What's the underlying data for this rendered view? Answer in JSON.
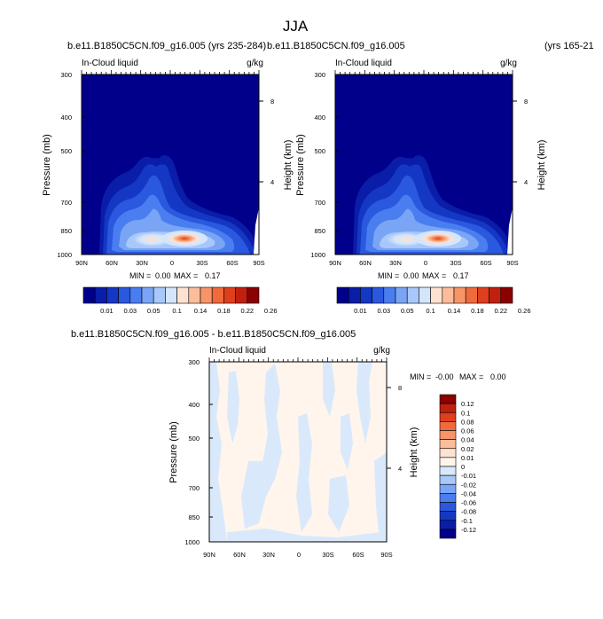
{
  "figure": {
    "title": "JJA"
  },
  "chart_data": [
    {
      "type": "heatmap",
      "panel": "left",
      "case_label": "b.e11.B1850C5CN.f09_g16.005 (yrs 235-284)",
      "variable": "In-Cloud liquid",
      "units": "g/kg",
      "ylabel": "Pressure (mb)",
      "ylabel_right": "Height (km)",
      "x_ticks": [
        "90N",
        "60N",
        "30N",
        "0",
        "30S",
        "60S",
        "90S"
      ],
      "y_ticks": [
        "300",
        "400",
        "500",
        "700",
        "850",
        "1000"
      ],
      "y_right_ticks": [
        "8",
        "4"
      ],
      "ylim": [
        1000,
        300
      ],
      "stats": {
        "min_label": "MIN =",
        "min": "0.00",
        "max_label": "MAX =",
        "max": "0.17"
      },
      "colorbar": {
        "labels": [
          "0.01",
          "0.03",
          "0.05",
          "0.1",
          "0.14",
          "0.18",
          "0.22",
          "0.26"
        ],
        "colors": [
          "#00008b",
          "#0a1da8",
          "#1438c4",
          "#2a58de",
          "#4a7ef0",
          "#7aa5f5",
          "#a8c8fa",
          "#d5e6fc",
          "#fde2d0",
          "#fbbd9c",
          "#f79468",
          "#f06a3c",
          "#de3f1c",
          "#c0200f",
          "#8b0000"
        ]
      }
    },
    {
      "type": "heatmap",
      "panel": "right",
      "case_label": "b.e11.B1850C5CN.f09_g16.005",
      "case_years": "(yrs 165-21",
      "variable": "In-Cloud liquid",
      "units": "g/kg",
      "ylabel": "Pressure (mb)",
      "ylabel_right": "Height (km)",
      "x_ticks": [
        "90N",
        "60N",
        "30N",
        "0",
        "30S",
        "60S",
        "90S"
      ],
      "y_ticks": [
        "300",
        "400",
        "500",
        "700",
        "850",
        "1000"
      ],
      "y_right_ticks": [
        "8",
        "4"
      ],
      "ylim": [
        1000,
        300
      ],
      "stats": {
        "min_label": "MIN =",
        "min": "0.00",
        "max_label": "MAX =",
        "max": "0.17"
      },
      "colorbar": {
        "labels": [
          "0.01",
          "0.03",
          "0.05",
          "0.1",
          "0.14",
          "0.18",
          "0.22",
          "0.26"
        ],
        "colors": [
          "#00008b",
          "#0a1da8",
          "#1438c4",
          "#2a58de",
          "#4a7ef0",
          "#7aa5f5",
          "#a8c8fa",
          "#d5e6fc",
          "#fde2d0",
          "#fbbd9c",
          "#f79468",
          "#f06a3c",
          "#de3f1c",
          "#c0200f",
          "#8b0000"
        ]
      }
    },
    {
      "type": "heatmap",
      "panel": "difference",
      "case_label": "b.e11.B1850C5CN.f09_g16.005 - b.e11.B1850C5CN.f09_g16.005",
      "variable": "In-Cloud liquid",
      "units": "g/kg",
      "ylabel": "Pressure (mb)",
      "ylabel_right": "Height (km)",
      "x_ticks": [
        "90N",
        "60N",
        "30N",
        "0",
        "30S",
        "60S",
        "90S"
      ],
      "y_ticks": [
        "300",
        "400",
        "500",
        "700",
        "850",
        "1000"
      ],
      "y_right_ticks": [
        "8",
        "4"
      ],
      "ylim": [
        1000,
        300
      ],
      "stats": {
        "min_label": "MIN =",
        "min": "-0.00",
        "max_label": "MAX =",
        "max": "0.00"
      },
      "colorbar": {
        "labels": [
          "0.12",
          "0.1",
          "0.08",
          "0.06",
          "0.04",
          "0.02",
          "0.01",
          "0",
          "-0.01",
          "-0.02",
          "-0.04",
          "-0.06",
          "-0.08",
          "-0.1",
          "-0.12"
        ],
        "colors": [
          "#8b0000",
          "#c0200f",
          "#de3f1c",
          "#f06a3c",
          "#f79468",
          "#fbbd9c",
          "#fde2d0",
          "#fff5ec",
          "#d9e9fb",
          "#a8c8fa",
          "#7aa5f5",
          "#4a7ef0",
          "#2a58de",
          "#1438c4",
          "#0a1da8",
          "#00008b"
        ]
      }
    }
  ]
}
